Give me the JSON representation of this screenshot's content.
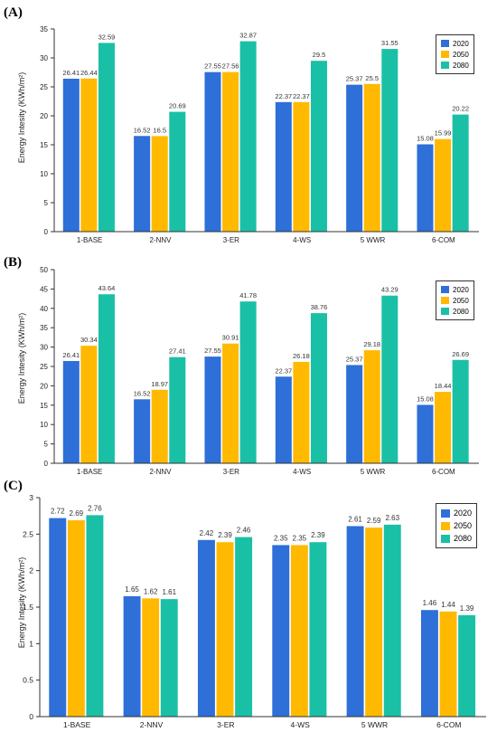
{
  "colors": {
    "2020": "#2e6fd8",
    "2050": "#ffb900",
    "2080": "#1ac0a5"
  },
  "chart_data": [
    {
      "panel_label": "(A)",
      "type": "bar",
      "ylabel": "Energy Intesity (KWh/m²)",
      "ylim": [
        0,
        35
      ],
      "yticks": [
        "0",
        "5",
        "10",
        "15",
        "20",
        "25",
        "30",
        "35"
      ],
      "categories": [
        "1-BASE",
        "2-NNV",
        "3-ER",
        "4-WS",
        "5 WWR",
        "6-COM"
      ],
      "legend_position": "top-right",
      "series": [
        {
          "name": "2020",
          "values": [
            26.41,
            16.52,
            27.55,
            22.37,
            25.37,
            15.08
          ],
          "labels": [
            "26.41",
            "16.52",
            "27.55",
            "22.37",
            "25.37",
            "15.08"
          ]
        },
        {
          "name": "2050",
          "values": [
            26.44,
            16.5,
            27.56,
            22.37,
            25.5,
            15.99
          ],
          "labels": [
            "26.44",
            "16.5",
            "27.56",
            "22.37",
            "25.5",
            "15.99"
          ]
        },
        {
          "name": "2080",
          "values": [
            32.59,
            20.69,
            32.87,
            29.5,
            31.55,
            20.22
          ],
          "labels": [
            "32.59",
            "20.69",
            "32.87",
            "29.5",
            "31.55",
            "20.22"
          ]
        }
      ]
    },
    {
      "panel_label": "(B)",
      "type": "bar",
      "ylabel": "Energy Intesity (KWh/m²)",
      "ylim": [
        0,
        50
      ],
      "yticks": [
        "0",
        "5",
        "10",
        "15",
        "20",
        "25",
        "30",
        "35",
        "40",
        "45",
        "50"
      ],
      "categories": [
        "1-BASE",
        "2-NNV",
        "3-ER",
        "4-WS",
        "5 WWR",
        "6-COM"
      ],
      "legend_position": "top-right",
      "series": [
        {
          "name": "2020",
          "values": [
            26.41,
            16.52,
            27.55,
            22.37,
            25.37,
            15.08
          ],
          "labels": [
            "26.41",
            "16.52",
            "27.55",
            "22.37",
            "25.37",
            "15.08"
          ]
        },
        {
          "name": "2050",
          "values": [
            30.34,
            18.97,
            30.91,
            26.18,
            29.18,
            18.44
          ],
          "labels": [
            "30.34",
            "18.97",
            "30.91",
            "26.18",
            "29.18",
            "18.44"
          ]
        },
        {
          "name": "2080",
          "values": [
            43.64,
            27.41,
            41.78,
            38.76,
            43.29,
            26.69
          ],
          "labels": [
            "43.64",
            "27.41",
            "41.78",
            "38.76",
            "43.29",
            "26.69"
          ]
        }
      ]
    },
    {
      "panel_label": "(C)",
      "type": "bar",
      "ylabel": "Energy Intesity (KWh/m²)",
      "ylim": [
        0,
        3
      ],
      "yticks": [
        "0",
        "0.5",
        "1",
        "1.5",
        "2",
        "2.5",
        "3"
      ],
      "categories": [
        "1-BASE",
        "2-NNV",
        "3-ER",
        "4-WS",
        "5 WWR",
        "6-COM"
      ],
      "legend_position": "top-right",
      "series": [
        {
          "name": "2020",
          "values": [
            2.72,
            1.65,
            2.42,
            2.35,
            2.61,
            1.46
          ],
          "labels": [
            "2.72",
            "1.65",
            "2.42",
            "2.35",
            "2.61",
            "1.46"
          ]
        },
        {
          "name": "2050",
          "values": [
            2.69,
            1.62,
            2.39,
            2.35,
            2.59,
            1.44
          ],
          "labels": [
            "2.69",
            "1.62",
            "2.39",
            "2.35",
            "2.59",
            "1.44"
          ]
        },
        {
          "name": "2080",
          "values": [
            2.76,
            1.61,
            2.46,
            2.39,
            2.63,
            1.39
          ],
          "labels": [
            "2.76",
            "1.61",
            "2.46",
            "2.39",
            "2.63",
            "1.39"
          ]
        }
      ]
    }
  ]
}
